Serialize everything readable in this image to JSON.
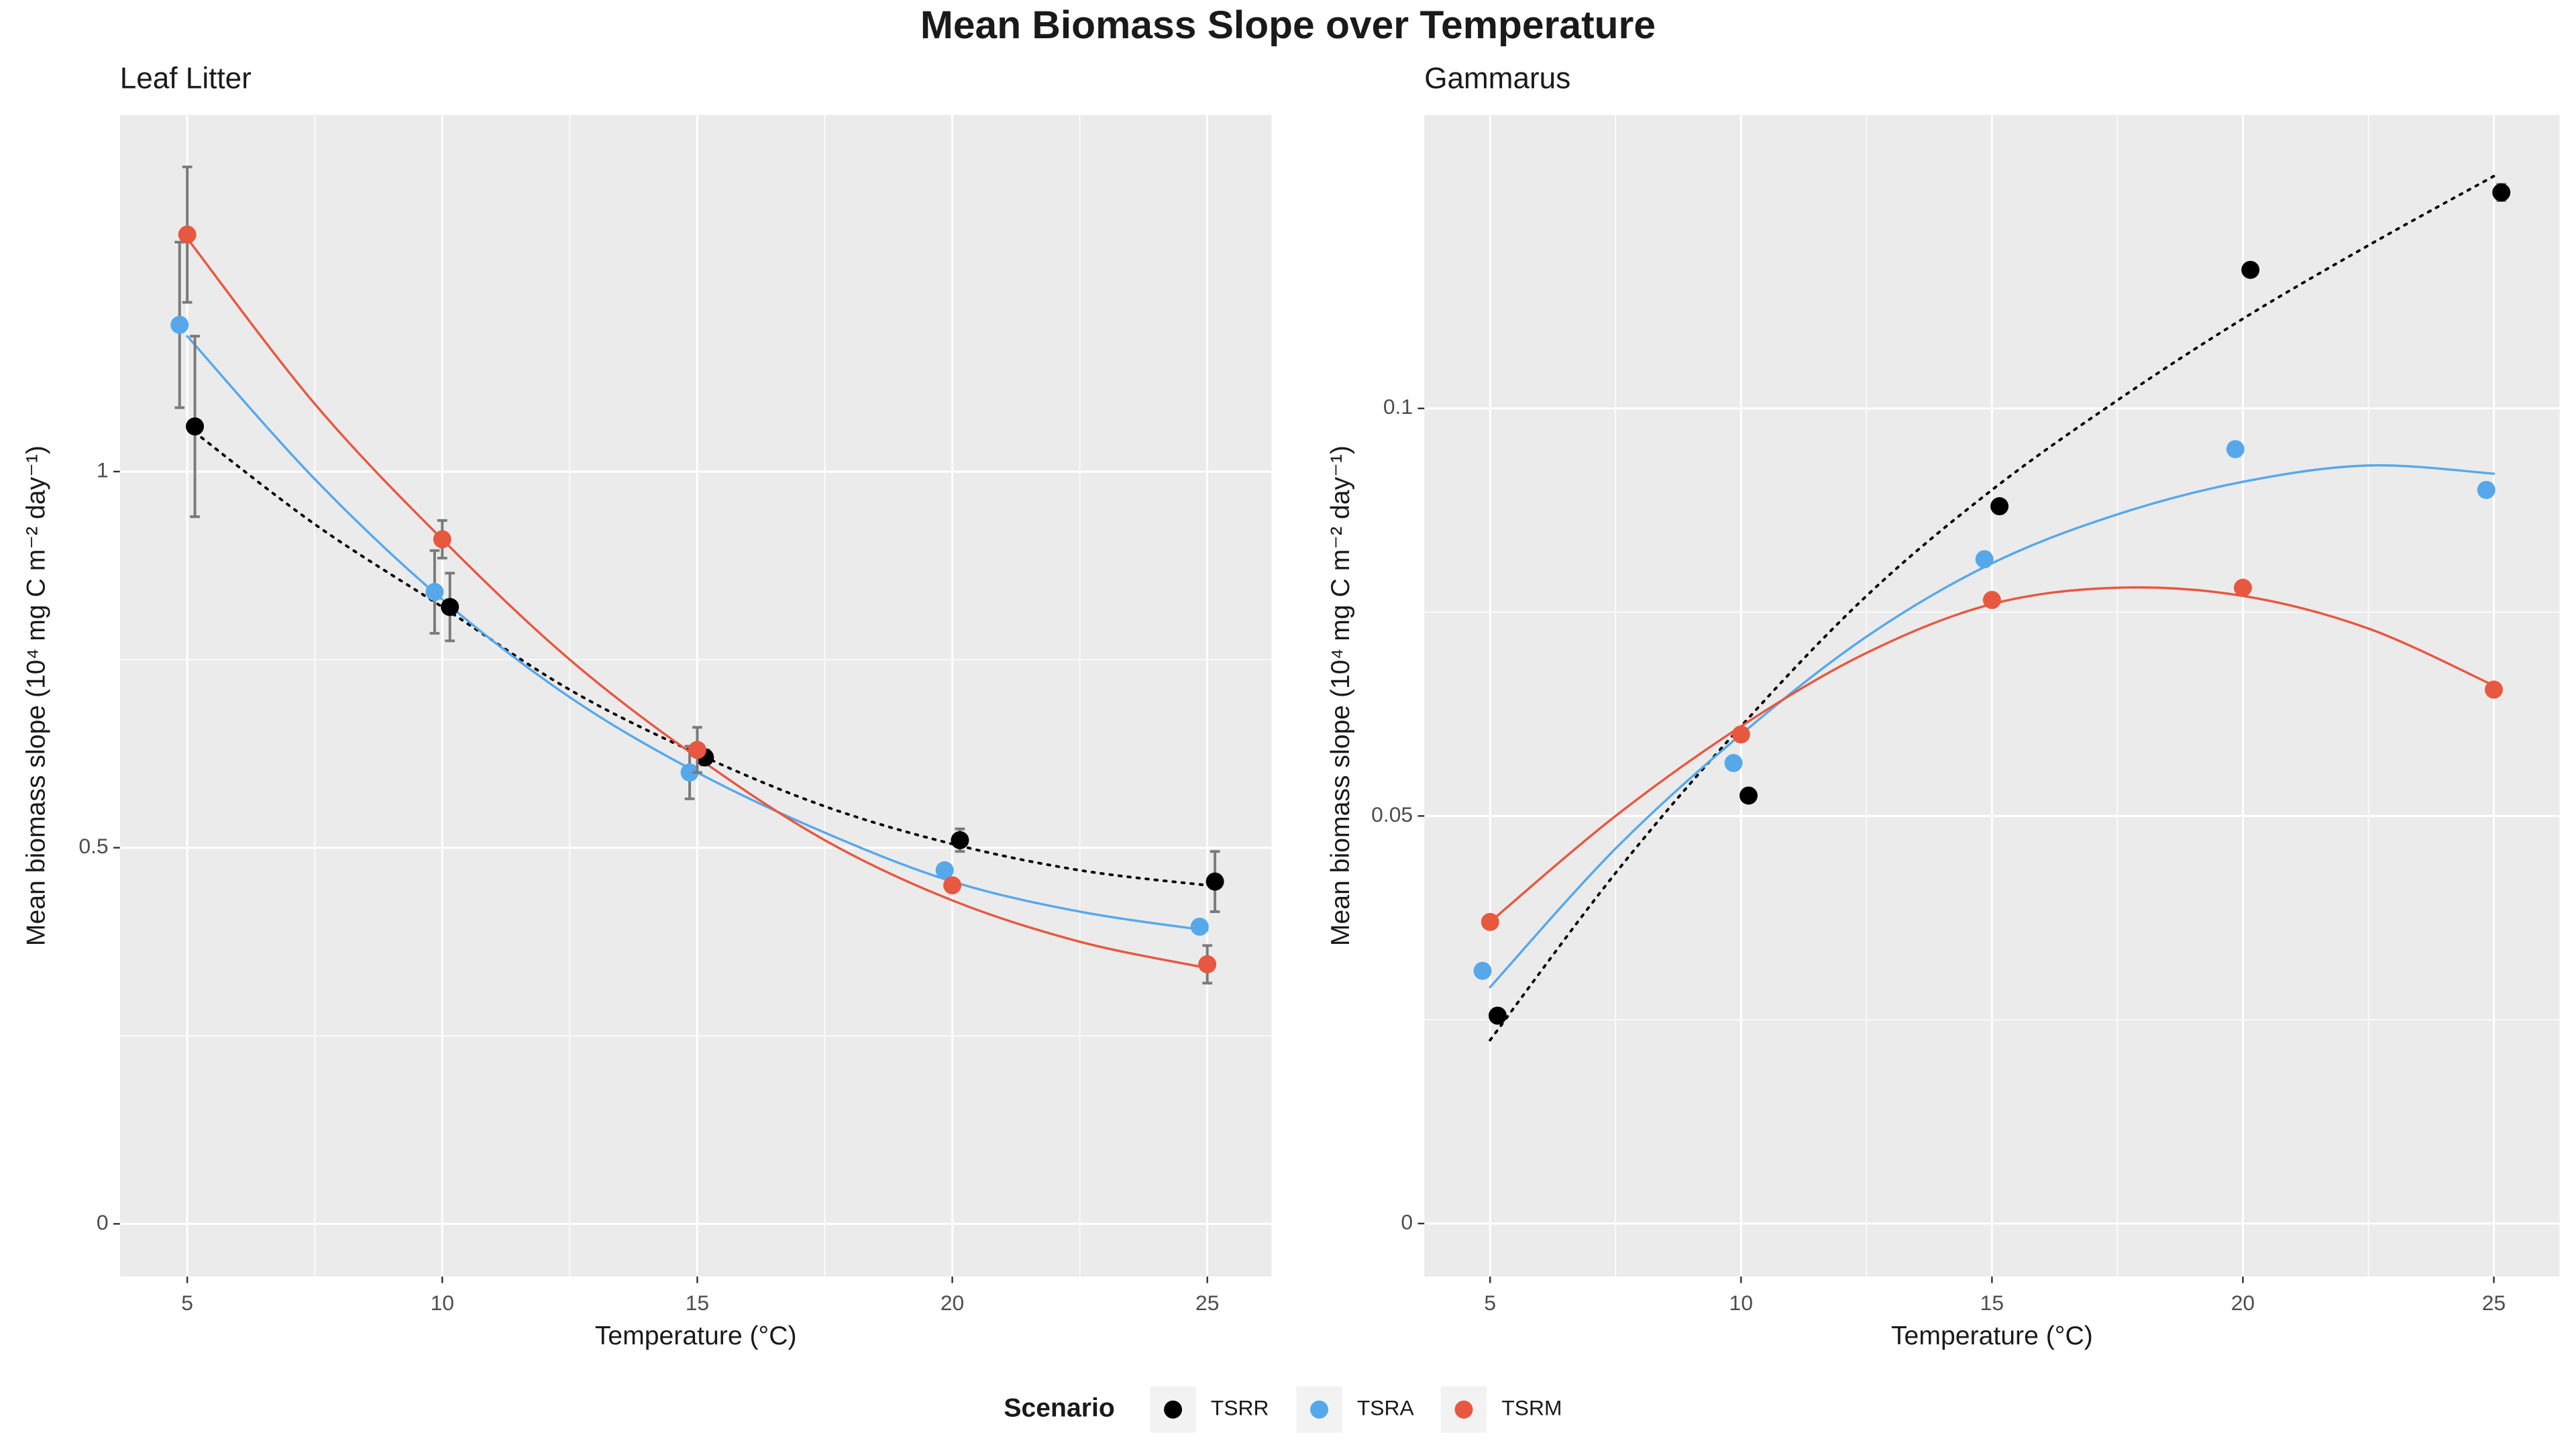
{
  "title": "Mean Biomass Slope over Temperature",
  "legend_title": "Scenario",
  "chart_data": [
    {
      "type": "scatter",
      "title": "Leaf Litter",
      "x_label": "Temperature (°C)",
      "y_label": "Mean biomass slope (10⁴ mg C m⁻² day⁻¹)",
      "xlim": [
        3.68,
        26.26
      ],
      "ylim": [
        -0.07,
        1.474
      ],
      "xticks": [
        5,
        10,
        15,
        20,
        25
      ],
      "yticks": [
        0,
        0.5,
        1
      ],
      "grid": true,
      "series": [
        {
          "name": "TSRR",
          "color": "#000000",
          "fit_style": "dotted",
          "x": [
            5.15,
            10.15,
            15.15,
            20.15,
            25.15
          ],
          "values": [
            1.06,
            0.82,
            0.62,
            0.51,
            0.455
          ],
          "errors": [
            0.12,
            0.045,
            0.01,
            0.015,
            0.04
          ],
          "fit": {
            "x": [
              5,
              7.5,
              10,
              12.5,
              15,
              17.5,
              20,
              22.5,
              25
            ],
            "values": [
              1.06,
              0.93,
              0.82,
              0.71,
              0.625,
              0.555,
              0.505,
              0.47,
              0.45
            ]
          }
        },
        {
          "name": "TSRA",
          "color": "#56a8ea",
          "fit_style": "solid",
          "x": [
            4.85,
            9.85,
            14.85,
            19.85,
            24.85
          ],
          "values": [
            1.195,
            0.84,
            0.6,
            0.47,
            0.395
          ],
          "errors": [
            0.11,
            0.055,
            0.035,
            0.005,
            0.005
          ],
          "fit": {
            "x": [
              5,
              7.5,
              10,
              12.5,
              15,
              17.5,
              20,
              22.5,
              25
            ],
            "values": [
              1.18,
              0.99,
              0.83,
              0.7,
              0.6,
              0.52,
              0.455,
              0.415,
              0.39
            ]
          }
        },
        {
          "name": "TSRM",
          "color": "#e8573f",
          "fit_style": "solid",
          "x": [
            5,
            10,
            15,
            20,
            25
          ],
          "values": [
            1.315,
            0.91,
            0.63,
            0.45,
            0.345
          ],
          "errors": [
            0.09,
            0.025,
            0.03,
            0.005,
            0.025
          ],
          "fit": {
            "x": [
              5,
              7.5,
              10,
              12.5,
              15,
              17.5,
              20,
              22.5,
              25
            ],
            "values": [
              1.31,
              1.09,
              0.91,
              0.75,
              0.62,
              0.51,
              0.43,
              0.375,
              0.34
            ]
          }
        }
      ]
    },
    {
      "type": "scatter",
      "title": "Gammarus",
      "x_label": "Temperature (°C)",
      "y_label": "Mean biomass slope (10⁴ mg C m⁻² day⁻¹)",
      "xlim": [
        3.69,
        26.31
      ],
      "ylim": [
        -0.0065,
        0.136
      ],
      "xticks": [
        5,
        10,
        15,
        20,
        25
      ],
      "yticks": [
        0,
        0.05,
        0.1
      ],
      "grid": true,
      "series": [
        {
          "name": "TSRR",
          "color": "#000000",
          "fit_style": "dotted",
          "x": [
            5.15,
            10.15,
            15.15,
            20.15,
            25.15
          ],
          "values": [
            0.0255,
            0.0525,
            0.088,
            0.117,
            0.1265
          ],
          "errors": [
            0.0006,
            0.0006,
            0.0008,
            0.0008,
            0.001
          ],
          "fit": {
            "x": [
              5,
              7.5,
              10,
              12.5,
              15,
              17.5,
              20,
              22.5,
              25
            ],
            "values": [
              0.0225,
              0.043,
              0.061,
              0.077,
              0.09,
              0.101,
              0.111,
              0.12,
              0.1285
            ]
          }
        },
        {
          "name": "TSRA",
          "color": "#56a8ea",
          "fit_style": "solid",
          "x": [
            4.85,
            9.85,
            14.85,
            19.85,
            24.85
          ],
          "values": [
            0.031,
            0.0565,
            0.0815,
            0.095,
            0.09
          ],
          "errors": [
            0.0006,
            0.0006,
            0.0008,
            0.0008,
            0.0008
          ],
          "fit": {
            "x": [
              5,
              7.5,
              10,
              12.5,
              15,
              17.5,
              20,
              22.5,
              25
            ],
            "values": [
              0.029,
              0.046,
              0.06,
              0.072,
              0.081,
              0.087,
              0.091,
              0.093,
              0.092
            ]
          }
        },
        {
          "name": "TSRM",
          "color": "#e8573f",
          "fit_style": "solid",
          "x": [
            5,
            10,
            15,
            20,
            25
          ],
          "values": [
            0.037,
            0.06,
            0.0765,
            0.078,
            0.0655
          ],
          "errors": [
            0.0005,
            0.0005,
            0.0005,
            0.0005,
            0.0005
          ],
          "fit": {
            "x": [
              5,
              7.5,
              10,
              12.5,
              15,
              17.5,
              20,
              22.5,
              25
            ],
            "values": [
              0.037,
              0.05,
              0.061,
              0.07,
              0.076,
              0.078,
              0.077,
              0.073,
              0.066
            ]
          }
        }
      ]
    }
  ]
}
